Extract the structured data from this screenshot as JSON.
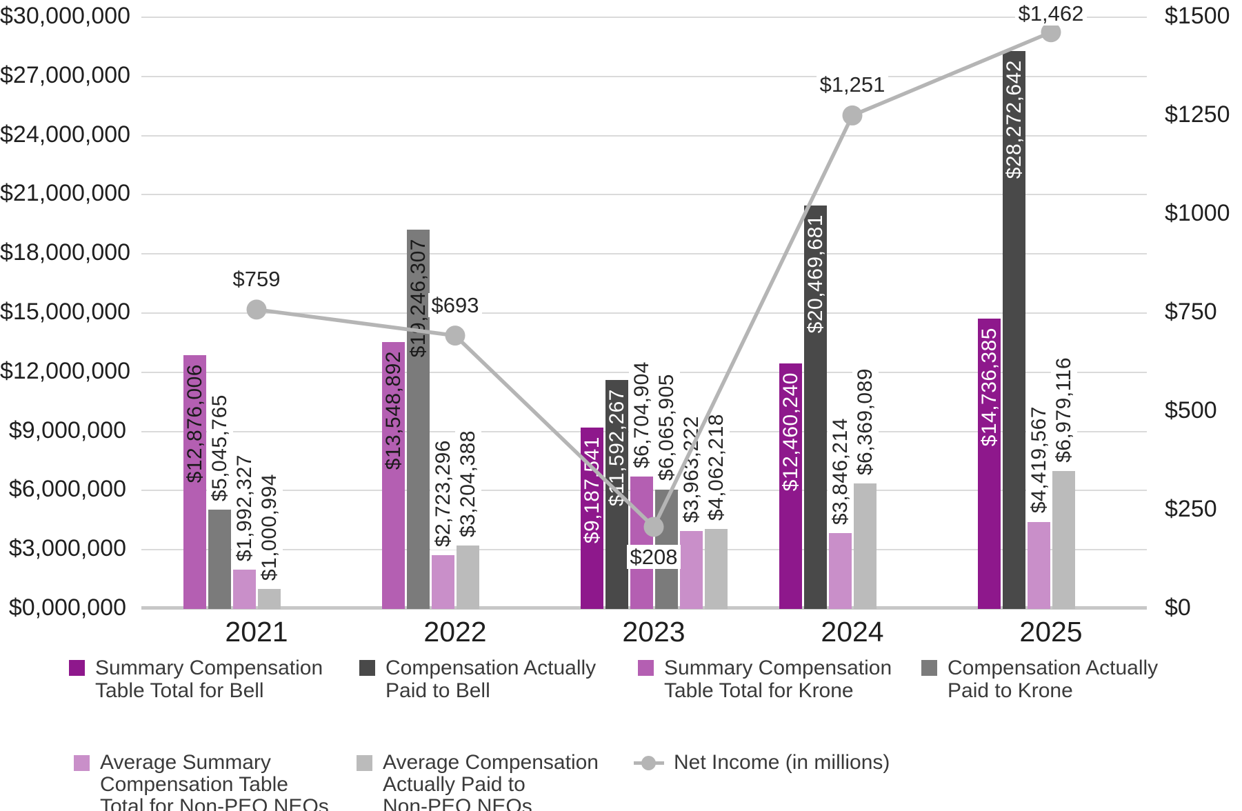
{
  "chart_data": {
    "type": "bar",
    "subtype": "grouped-bar-with-line-dual-axis",
    "categories": [
      "2021",
      "2022",
      "2023",
      "2024",
      "2025"
    ],
    "series": [
      {
        "name": "Summary Compensation Table Total for Bell",
        "color": "#8E188C",
        "values": [
          null,
          null,
          9187541,
          12460240,
          14736385
        ],
        "labels": [
          null,
          null,
          "$9,187,541",
          "$12,460,240",
          "$14,736,385"
        ],
        "label_placements": [
          null,
          null,
          "inside-white",
          "inside-white",
          "inside-white"
        ]
      },
      {
        "name": "Compensation Actually Paid to Bell",
        "color": "#494949",
        "values": [
          null,
          null,
          11592267,
          20469681,
          28272642
        ],
        "labels": [
          null,
          null,
          "$11,592,267",
          "$20,469,681",
          "$28,272,642"
        ],
        "label_placements": [
          null,
          null,
          "inside-white",
          "inside-white",
          "inside-white"
        ]
      },
      {
        "name": "Summary Compensation Table Total for Krone",
        "color": "#B45FB2",
        "values": [
          12876006,
          13548892,
          6704904,
          null,
          null
        ],
        "labels": [
          "$12,876,006",
          "$13,548,892",
          "$6,704,904",
          null,
          null
        ],
        "label_placements": [
          "inside-black",
          "inside-black",
          "above",
          null,
          null
        ]
      },
      {
        "name": "Compensation Actually Paid to Krone",
        "color": "#7B7B7B",
        "values": [
          5045765,
          19246307,
          6065905,
          null,
          null
        ],
        "labels": [
          "$5,045,765",
          "$19,246,307",
          "$6,065,905",
          null,
          null
        ],
        "label_placements": [
          "above",
          "inside-black",
          "above",
          null,
          null
        ]
      },
      {
        "name": "Average Summary Compensation Table Total for Non-PEO NEOs",
        "color": "#C98FC9",
        "values": [
          1992327,
          2723296,
          3963222,
          3846214,
          4419567
        ],
        "labels": [
          "$1,992,327",
          "$2,723,296",
          "$3,963,222",
          "$3,846,214",
          "$4,419,567"
        ],
        "label_placements": [
          "above",
          "above",
          "above",
          "above",
          "above"
        ]
      },
      {
        "name": "Average Compensation Actually Paid to Non-PEO NEOs",
        "color": "#BBBBBB",
        "values": [
          1000994,
          3204388,
          4062218,
          6369089,
          6979116
        ],
        "labels": [
          "$1,000,994",
          "$3,204,388",
          "$4,062,218",
          "$6,369,089",
          "$6,979,116"
        ],
        "label_placements": [
          "above",
          "above",
          "above",
          "above",
          "above"
        ]
      }
    ],
    "line_series": {
      "name": "Net Income (in millions)",
      "color": "#B5B5B5",
      "values": [
        759,
        693,
        208,
        1251,
        1462
      ],
      "labels": [
        "$759",
        "$693",
        "$208",
        "$1,251",
        "$1,462"
      ],
      "label_placements": [
        "above",
        "above",
        "below",
        "above",
        "above"
      ]
    },
    "left_axis": {
      "min": 0,
      "max": 30000000,
      "ticks": [
        "$30,000,000",
        "$27,000,000",
        "$24,000,000",
        "$21,000,000",
        "$18,000,000",
        "$15,000,000",
        "$12,000,000",
        "$9,000,000",
        "$6,000,000",
        "$3,000,000",
        "$0,000,000"
      ]
    },
    "right_axis": {
      "min": 0,
      "max": 1500,
      "ticks": [
        "$1500",
        "$1250",
        "$1000",
        "$750",
        "$500",
        "$250",
        "$0"
      ]
    },
    "grid": true,
    "legend_position": "bottom",
    "legend": {
      "row1": [
        {
          "color": "#8E188C",
          "lines": [
            "Summary Compensation",
            "Table Total for Bell"
          ]
        },
        {
          "color": "#494949",
          "lines": [
            "Compensation Actually",
            "Paid to Bell"
          ]
        },
        {
          "color": "#B45FB2",
          "lines": [
            "Summary Compensation",
            "Table Total for Krone"
          ]
        },
        {
          "color": "#7B7B7B",
          "lines": [
            "Compensation Actually",
            "Paid to Krone"
          ]
        }
      ],
      "row2": [
        {
          "color": "#C98FC9",
          "lines": [
            "Average Summary",
            "Compensation Table",
            "Total for Non-PEO NEOs"
          ]
        },
        {
          "color": "#BBBBBB",
          "lines": [
            "Average Compensation",
            "Actually Paid to",
            "Non-PEO NEOs"
          ]
        },
        {
          "marker": "line-circle",
          "color": "#B5B5B5",
          "lines": [
            "Net Income (in millions)"
          ]
        }
      ]
    }
  }
}
